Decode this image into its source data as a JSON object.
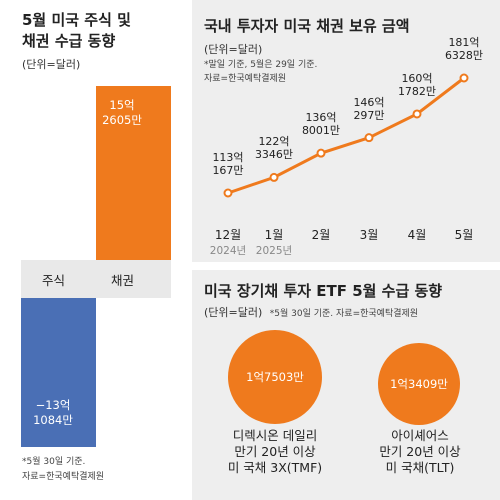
{
  "left": {
    "title_line1": "5월 미국 주식 및",
    "title_line2": "채권 수급 동향",
    "unit": "(단위=달러)",
    "note_line1": "*5월 30일 기준.",
    "note_line2": "자료=한국예탁결제원"
  },
  "top_right": {
    "title": "국내 투자자 미국 채권 보유 금액",
    "unit": "(단위=달러)",
    "note_line1": "*말일 기준, 5월은 29일 기준.",
    "note_line2": "자료=한국예탁결제원"
  },
  "bottom_right": {
    "title": "미국 장기채 투자 ETF 5월 수급 동향",
    "unit": "(단위=달러)",
    "note": "*5월 30일 기준. 자료=한국예탁결제원"
  },
  "colors": {
    "orange": "#ef7a1d",
    "blue": "#4a6fb5",
    "panel": "#eeeeee"
  },
  "chart_data": [
    {
      "type": "bar",
      "title": "5월 미국 주식 및 채권 수급 동향",
      "unit": "(단위=달러)",
      "categories": [
        "주식",
        "채권"
      ],
      "values": [
        -1310840000,
        1526050000
      ],
      "value_labels": [
        [
          "−13억",
          "1084만"
        ],
        [
          "15억",
          "2605만"
        ]
      ]
    },
    {
      "type": "line",
      "title": "국내 투자자 미국 채권 보유 금액",
      "unit": "(단위=달러)",
      "categories": [
        "12월",
        "1월",
        "2월",
        "3월",
        "4월",
        "5월"
      ],
      "year_labels": [
        "2024년",
        "2025년",
        "",
        "",
        "",
        ""
      ],
      "values": [
        11301670000,
        12233460000,
        13680010000,
        14602970000,
        16017820000,
        18163280000
      ],
      "value_labels": [
        [
          "113억",
          "167만"
        ],
        [
          "122억",
          "3346만"
        ],
        [
          "136억",
          "8001만"
        ],
        [
          "146억",
          "297만"
        ],
        [
          "160억",
          "1782만"
        ],
        [
          "181억",
          "6328만"
        ]
      ]
    },
    {
      "type": "bubble",
      "title": "미국 장기채 투자 ETF 5월 수급 동향",
      "unit": "(단위=달러)",
      "categories": [
        [
          "디렉시온 데일리",
          "만기 20년 이상",
          "미 국채 3X(TMF)"
        ],
        [
          "아이셰어스",
          "만기 20년 이상",
          "미 국채(TLT)"
        ]
      ],
      "values": [
        175030000,
        134090000
      ],
      "value_labels": [
        "1억7503만",
        "1억3409만"
      ]
    }
  ]
}
